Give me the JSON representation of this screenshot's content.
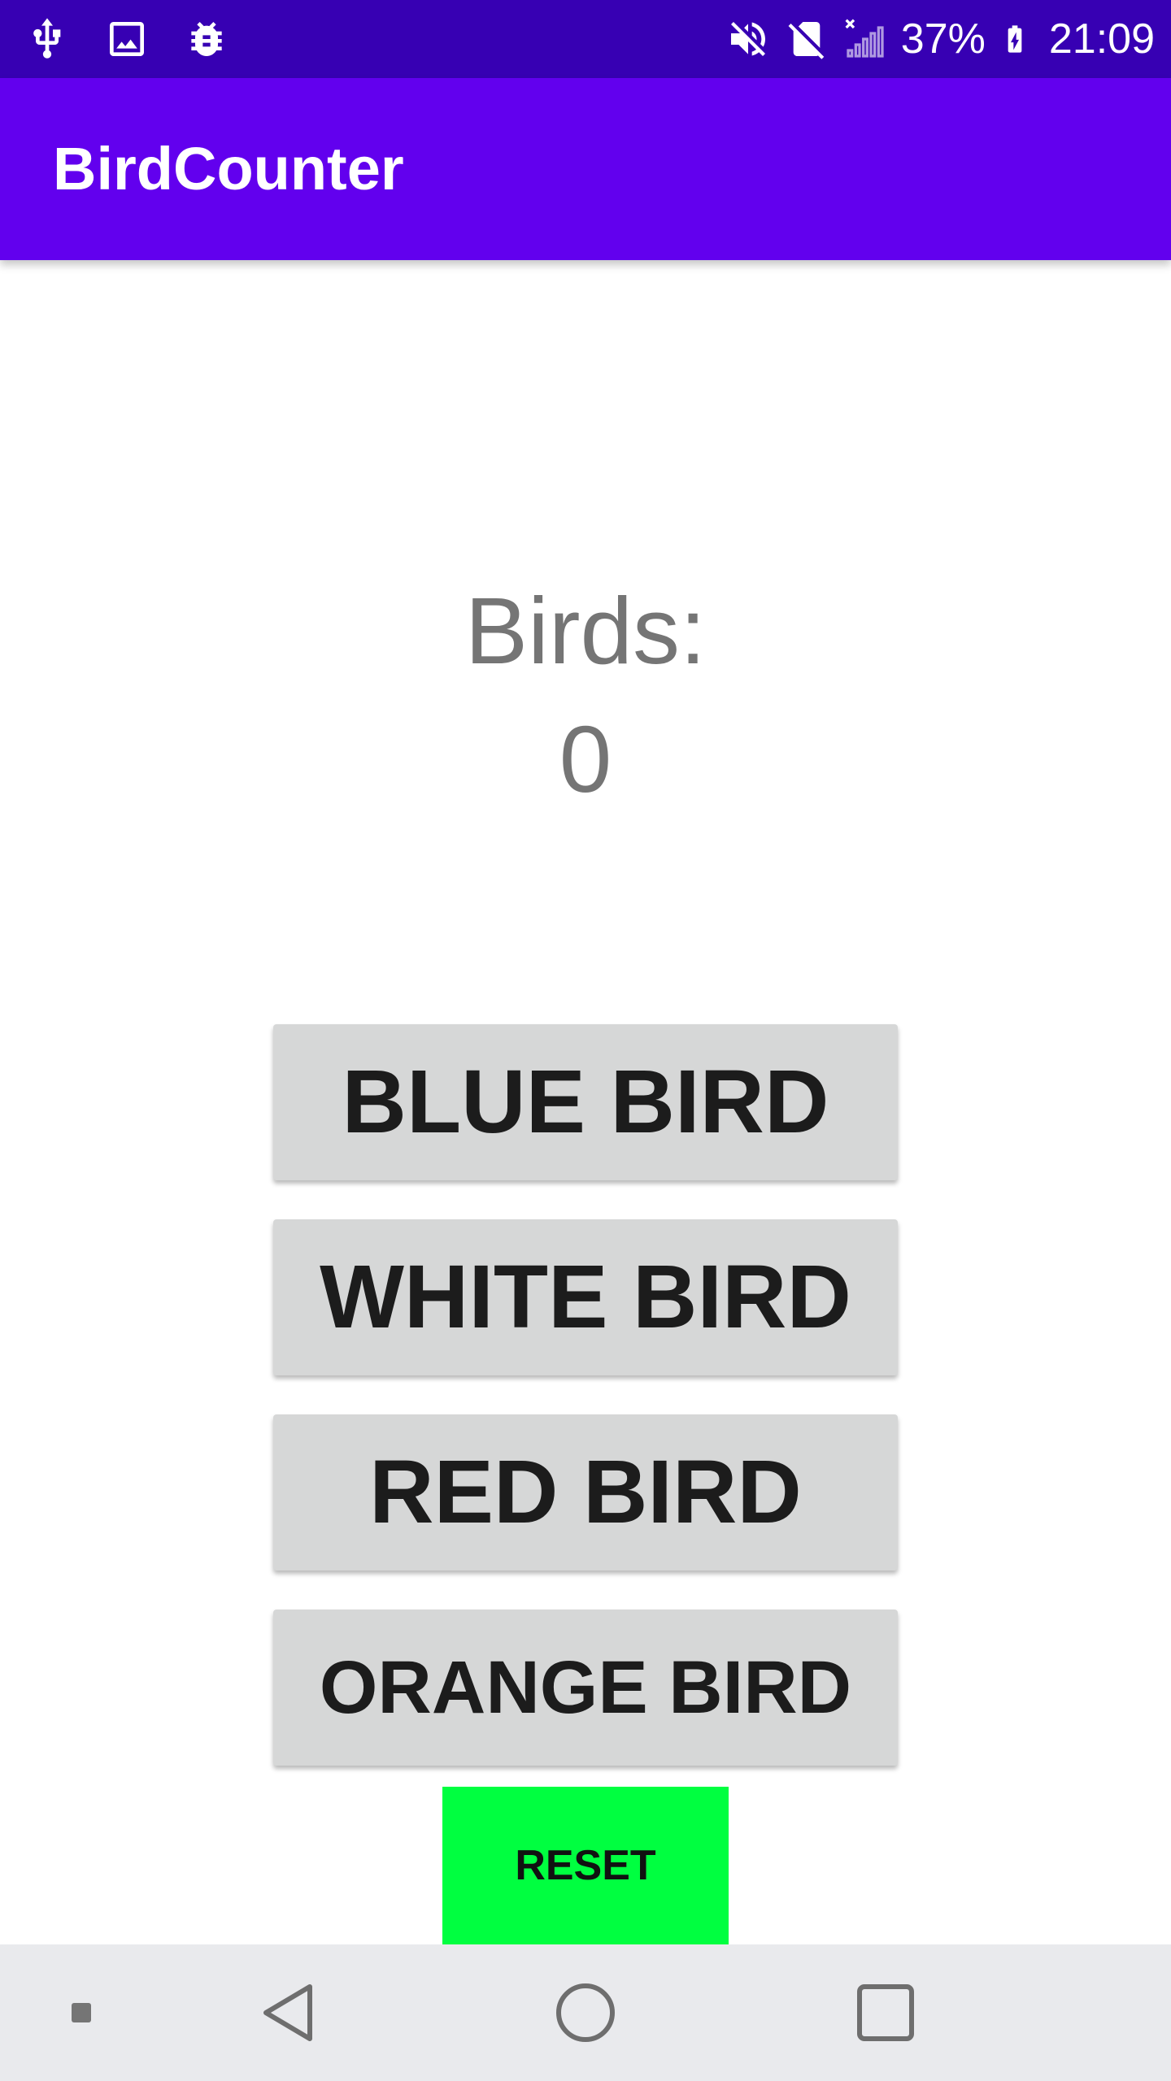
{
  "status_bar": {
    "battery_percent": "37%",
    "time": "21:09",
    "left_icons": [
      "usb-icon",
      "image-icon",
      "android-debug-icon"
    ],
    "right_icons": [
      "mute-icon",
      "no-sim-icon",
      "signal-icon",
      "battery-charging-icon"
    ]
  },
  "app_bar": {
    "title": "BirdCounter"
  },
  "counter": {
    "label": "Birds:",
    "value": "0"
  },
  "buttons": {
    "blue": "BLUE BIRD",
    "white": "WHITE BIRD",
    "red": "RED BIRD",
    "orange": "ORANGE BIRD",
    "reset": "RESET"
  },
  "nav_bar": {
    "icons": [
      "nav-dot-icon",
      "back-icon",
      "home-icon",
      "recents-icon"
    ]
  },
  "colors": {
    "status_bar": "#3700b3",
    "app_bar": "#6200ee",
    "bird_button": "#d6d7d7",
    "reset_button": "#00ff40",
    "counter_text": "#757575",
    "nav_bar": "#e9eaed"
  }
}
